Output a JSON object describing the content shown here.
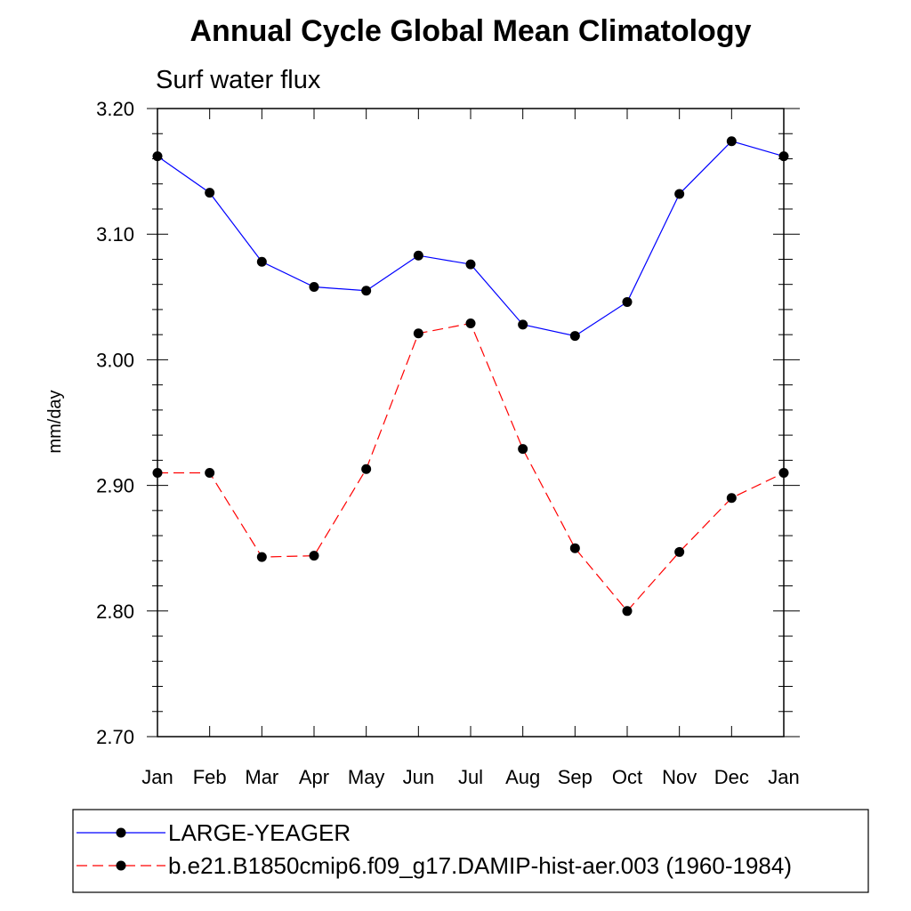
{
  "chart_data": {
    "type": "line",
    "title": "Annual Cycle Global Mean Climatology",
    "subtitle": "Surf water flux",
    "xlabel": "",
    "ylabel": "mm/day",
    "categories": [
      "Jan",
      "Feb",
      "Mar",
      "Apr",
      "May",
      "Jun",
      "Jul",
      "Aug",
      "Sep",
      "Oct",
      "Nov",
      "Dec",
      "Jan"
    ],
    "ylim": [
      2.7,
      3.2
    ],
    "yticks": [
      "2.70",
      "2.80",
      "2.90",
      "3.00",
      "3.10",
      "3.20"
    ],
    "grid": false,
    "legend_position": "bottom",
    "series": [
      {
        "name": "LARGE-YEAGER",
        "color": "#0000ff",
        "line_style": "solid",
        "marker": "filled-circle",
        "values": [
          3.162,
          3.133,
          3.078,
          3.058,
          3.055,
          3.083,
          3.076,
          3.028,
          3.019,
          3.046,
          3.132,
          3.174,
          3.162
        ]
      },
      {
        "name": "b.e21.B1850cmip6.f09_g17.DAMIP-hist-aer.003 (1960-1984)",
        "color": "#ff0000",
        "line_style": "dashed",
        "marker": "filled-circle",
        "values": [
          2.91,
          2.91,
          2.843,
          2.844,
          2.913,
          3.021,
          3.029,
          2.929,
          2.85,
          2.8,
          2.847,
          2.89,
          2.91
        ]
      }
    ]
  }
}
